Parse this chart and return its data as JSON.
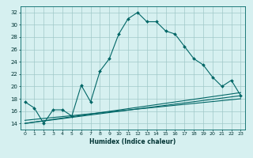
{
  "xlabel": "Humidex (Indice chaleur)",
  "ylabel": "",
  "background_color": "#d6f0f0",
  "grid_color": "#a0c8c8",
  "line_color": "#006666",
  "xlim": [
    -0.5,
    23.5
  ],
  "ylim": [
    13,
    33
  ],
  "yticks": [
    14,
    16,
    18,
    20,
    22,
    24,
    26,
    28,
    30,
    32
  ],
  "xticks": [
    0,
    1,
    2,
    3,
    4,
    5,
    6,
    7,
    8,
    9,
    10,
    11,
    12,
    13,
    14,
    15,
    16,
    17,
    18,
    19,
    20,
    21,
    22,
    23
  ],
  "series": [
    {
      "x": [
        0,
        1,
        2,
        3,
        4,
        5,
        6,
        7,
        8,
        9,
        10,
        11,
        12,
        13,
        14,
        15,
        16,
        17,
        18,
        19,
        20,
        21,
        22,
        23
      ],
      "y": [
        17.5,
        16.5,
        14.0,
        16.2,
        16.2,
        15.2,
        20.2,
        17.5,
        22.5,
        24.5,
        28.5,
        31.0,
        32.0,
        30.5,
        30.5,
        29.0,
        28.5,
        26.5,
        24.5,
        23.5,
        21.5,
        20.0,
        21.0,
        18.5
      ],
      "marker": true
    },
    {
      "x": [
        0,
        23
      ],
      "y": [
        14.0,
        19.0
      ],
      "marker": false
    },
    {
      "x": [
        0,
        23
      ],
      "y": [
        14.0,
        18.5
      ],
      "marker": false
    },
    {
      "x": [
        0,
        23
      ],
      "y": [
        14.5,
        18.0
      ],
      "marker": false
    }
  ]
}
